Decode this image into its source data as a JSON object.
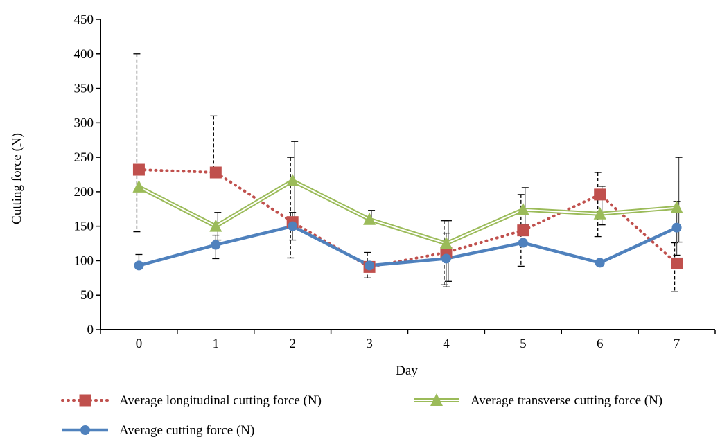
{
  "chart_data": {
    "type": "line",
    "title": "",
    "xlabel": "Day",
    "ylabel": "Cutting force (N)",
    "x": [
      0,
      1,
      2,
      3,
      4,
      5,
      6,
      7
    ],
    "ylim": [
      0,
      450
    ],
    "yticks": [
      0,
      50,
      100,
      150,
      200,
      250,
      300,
      350,
      400,
      450
    ],
    "grid": false,
    "legend_position": "bottom",
    "series": [
      {
        "name": "Average longitudinal cutting force (N)",
        "values": [
          232,
          228,
          156,
          91,
          112,
          144,
          196,
          96
        ],
        "error_low": [
          142,
          null,
          104,
          75,
          65,
          92,
          135,
          55
        ],
        "error_high": [
          400,
          310,
          250,
          112,
          158,
          196,
          228,
          126
        ],
        "color": "#c0504d",
        "line_style": "dotted",
        "marker": "square"
      },
      {
        "name": "Average transverse cutting force (N)",
        "values": [
          207,
          150,
          216,
          160,
          125,
          174,
          168,
          177
        ],
        "error_low": [
          null,
          130,
          160,
          153,
          70,
          153,
          152,
          127
        ],
        "error_high": [
          null,
          170,
          273,
          173,
          158,
          206,
          208,
          250
        ],
        "color": "#9bbb59",
        "line_style": "double",
        "marker": "triangle"
      },
      {
        "name": "Average cutting force (N)",
        "values": [
          93,
          123,
          150,
          93,
          103,
          126,
          97,
          148
        ],
        "error_low": [
          null,
          103,
          130,
          null,
          62,
          null,
          null,
          108
        ],
        "error_high": [
          109,
          137,
          170,
          null,
          140,
          null,
          null,
          186
        ],
        "color": "#4f81bd",
        "line_style": "solid",
        "marker": "circle"
      }
    ]
  }
}
